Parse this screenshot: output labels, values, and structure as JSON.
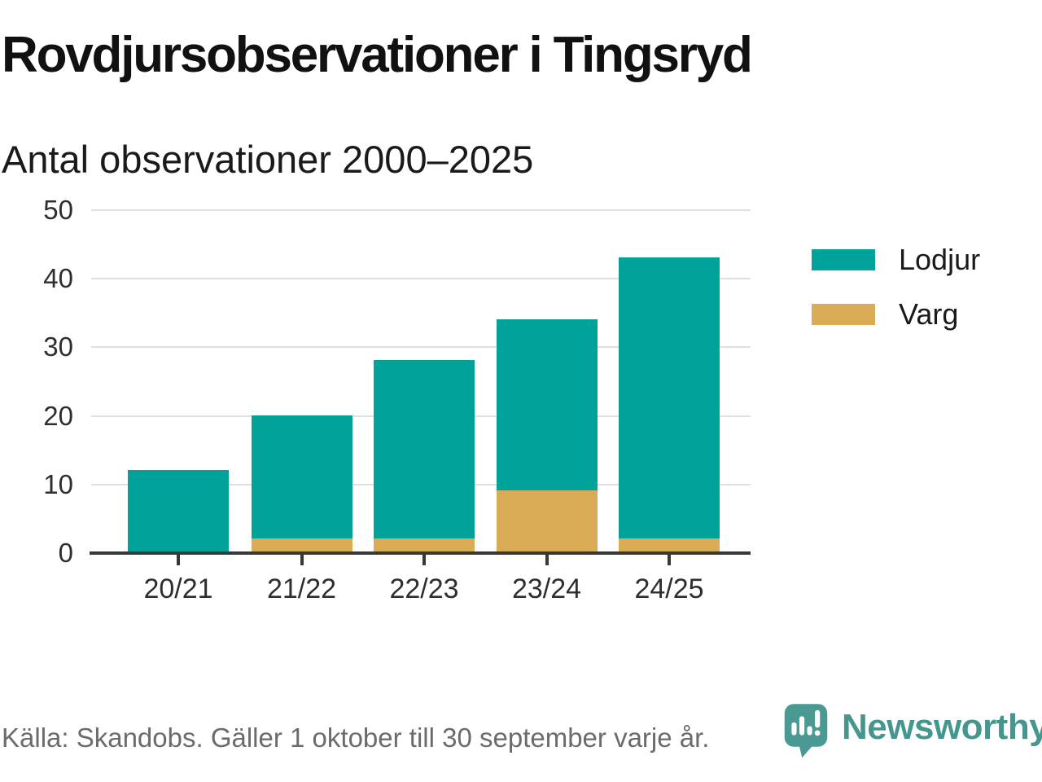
{
  "header": {
    "title": "Rovdjursobservationer i Tingsryd",
    "subtitle": "Antal observationer 2000–2025"
  },
  "chart_data": {
    "type": "bar",
    "stacked": true,
    "title": "Rovdjursobservationer i Tingsryd",
    "subtitle": "Antal observationer 2000–2025",
    "categories": [
      "20/21",
      "21/22",
      "22/23",
      "23/24",
      "24/25"
    ],
    "series": [
      {
        "name": "Lodjur",
        "color": "#00a299",
        "values": [
          12,
          18,
          26,
          25,
          41
        ]
      },
      {
        "name": "Varg",
        "color": "#d9ab55",
        "values": [
          0,
          2,
          2,
          9,
          2
        ]
      }
    ],
    "totals": [
      12,
      20,
      28,
      34,
      43
    ],
    "yticks": [
      0,
      10,
      20,
      30,
      40,
      50
    ],
    "ylim": [
      0,
      50
    ],
    "xlabel": "",
    "ylabel": "",
    "grid": "horizontal",
    "legend_position": "right"
  },
  "footer": {
    "source": "Källa: Skandobs. Gäller 1 oktober till 30 september varje år.",
    "brand": "Newsworthy"
  },
  "colors": {
    "lodjur": "#00a299",
    "varg": "#d9ab55",
    "gridline": "#e0e0e0",
    "axis": "#383838",
    "brand_teal": "#4a9a93"
  }
}
